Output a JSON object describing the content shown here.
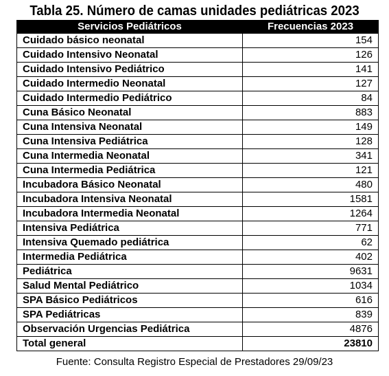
{
  "title": "Tabla 25. Número de camas unidades pediátricas 2023",
  "table": {
    "headers": [
      "Servicios Pediátricos",
      "Frecuencias 2023"
    ],
    "rows": [
      {
        "service": "Cuidado básico neonatal",
        "freq": "154"
      },
      {
        "service": "Cuidado Intensivo Neonatal",
        "freq": "126"
      },
      {
        "service": "Cuidado Intensivo Pediátrico",
        "freq": "141"
      },
      {
        "service": "Cuidado Intermedio Neonatal",
        "freq": "127"
      },
      {
        "service": "Cuidado Intermedio Pediátrico",
        "freq": "84"
      },
      {
        "service": "Cuna Básico Neonatal",
        "freq": "883"
      },
      {
        "service": "Cuna Intensiva Neonatal",
        "freq": "149"
      },
      {
        "service": "Cuna Intensiva Pediátrica",
        "freq": "128"
      },
      {
        "service": "Cuna Intermedia Neonatal",
        "freq": "341"
      },
      {
        "service": "Cuna Intermedia Pediátrica",
        "freq": "121"
      },
      {
        "service": "Incubadora Básico Neonatal",
        "freq": "480"
      },
      {
        "service": "Incubadora Intensiva Neonatal",
        "freq": "1581"
      },
      {
        "service": "Incubadora Intermedia Neonatal",
        "freq": "1264"
      },
      {
        "service": "Intensiva Pediátrica",
        "freq": "771"
      },
      {
        "service": "Intensiva Quemado pediátrica",
        "freq": "62"
      },
      {
        "service": "Intermedia Pediátrica",
        "freq": "402"
      },
      {
        "service": "Pediátrica",
        "freq": "9631"
      },
      {
        "service": "Salud Mental Pediátrico",
        "freq": "1034"
      },
      {
        "service": "SPA Básico Pediátricos",
        "freq": "616"
      },
      {
        "service": "SPA Pediátricas",
        "freq": "839"
      },
      {
        "service": "Observación Urgencias Pediátrica",
        "freq": "4876"
      }
    ],
    "total": {
      "label": "Total general",
      "value": "23810"
    }
  },
  "source": "Fuente: Consulta Registro Especial de Prestadores 29/09/23"
}
